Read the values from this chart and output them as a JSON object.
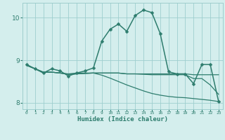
{
  "xlabel": "Humidex (Indice chaleur)",
  "bg_color": "#d4eeed",
  "grid_color": "#9ecece",
  "line_color": "#2e7d6e",
  "xlim": [
    -0.5,
    23.5
  ],
  "ylim": [
    7.85,
    10.35
  ],
  "yticks": [
    8,
    9,
    10
  ],
  "xticks": [
    0,
    1,
    2,
    3,
    4,
    5,
    6,
    7,
    8,
    9,
    10,
    11,
    12,
    13,
    14,
    15,
    16,
    17,
    18,
    19,
    20,
    21,
    22,
    23
  ],
  "series": [
    {
      "x": [
        0,
        1,
        2,
        3,
        4,
        5,
        6,
        7,
        8,
        9,
        10,
        11,
        12,
        13,
        14,
        15,
        16,
        17,
        18,
        19,
        20,
        21,
        22,
        23
      ],
      "y": [
        8.9,
        8.8,
        8.7,
        8.8,
        8.75,
        8.63,
        8.7,
        8.75,
        8.82,
        9.45,
        9.73,
        9.85,
        9.68,
        10.05,
        10.18,
        10.12,
        9.63,
        8.73,
        8.68,
        8.68,
        8.45,
        8.9,
        8.9,
        8.03
      ],
      "marker": "D",
      "ms": 2.5,
      "lw": 1.1,
      "has_marker": true
    },
    {
      "x": [
        0,
        1,
        2,
        3,
        4,
        5,
        6,
        7,
        8,
        9,
        10,
        11,
        12,
        13,
        14,
        15,
        16,
        17,
        18,
        19,
        20,
        21,
        22,
        23
      ],
      "y": [
        8.88,
        8.8,
        8.72,
        8.72,
        8.7,
        8.68,
        8.7,
        8.7,
        8.7,
        8.7,
        8.7,
        8.7,
        8.68,
        8.68,
        8.67,
        8.66,
        8.66,
        8.66,
        8.66,
        8.66,
        8.57,
        8.57,
        8.42,
        8.2
      ],
      "marker": null,
      "ms": 0,
      "lw": 0.9,
      "has_marker": false
    },
    {
      "x": [
        0,
        1,
        2,
        3,
        4,
        5,
        6,
        7,
        8,
        9,
        10,
        11,
        12,
        13,
        14,
        15,
        16,
        17,
        18,
        19,
        20,
        21,
        22,
        23
      ],
      "y": [
        8.88,
        8.8,
        8.72,
        8.72,
        8.7,
        8.67,
        8.68,
        8.69,
        8.7,
        8.7,
        8.7,
        8.7,
        8.68,
        8.68,
        8.68,
        8.68,
        8.68,
        8.68,
        8.68,
        8.68,
        8.66,
        8.66,
        8.66,
        8.66
      ],
      "marker": null,
      "ms": 0,
      "lw": 0.9,
      "has_marker": false
    },
    {
      "x": [
        0,
        1,
        2,
        3,
        4,
        5,
        6,
        7,
        8,
        9,
        10,
        11,
        12,
        13,
        14,
        15,
        16,
        17,
        18,
        19,
        20,
        21,
        22,
        23
      ],
      "y": [
        8.88,
        8.8,
        8.72,
        8.72,
        8.7,
        8.67,
        8.68,
        8.69,
        8.7,
        8.65,
        8.58,
        8.5,
        8.42,
        8.35,
        8.28,
        8.22,
        8.18,
        8.15,
        8.13,
        8.12,
        8.1,
        8.08,
        8.06,
        8.03
      ],
      "marker": null,
      "ms": 0,
      "lw": 0.9,
      "has_marker": false
    }
  ]
}
